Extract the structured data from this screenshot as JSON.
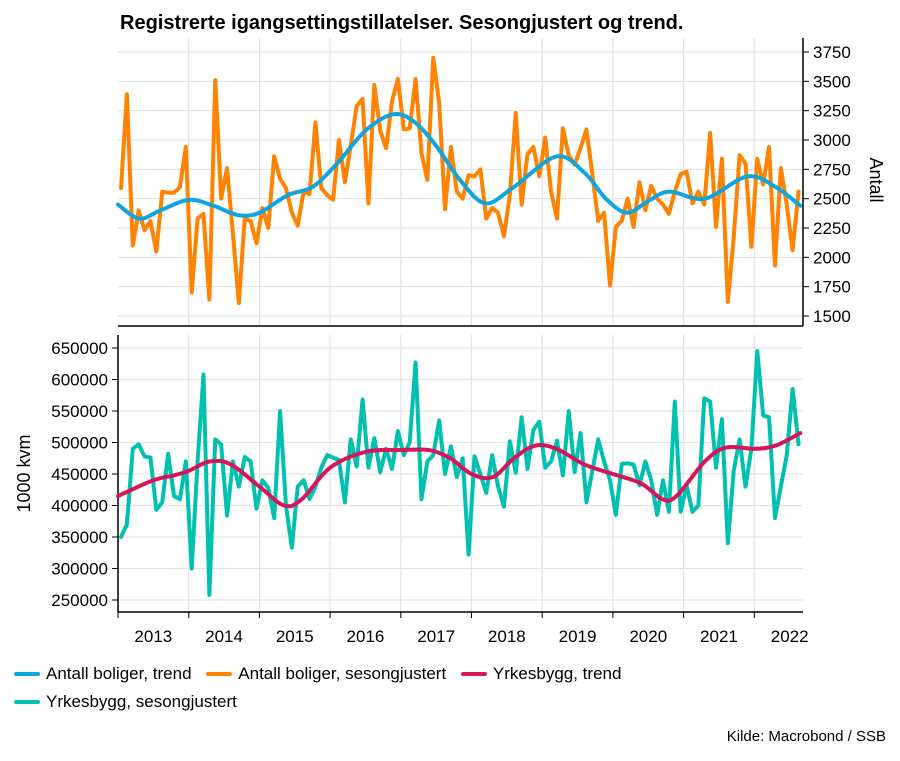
{
  "chart_data": [
    {
      "type": "line",
      "title": "Registrerte igangsettingstillatelser. Sesongjustert og trend.",
      "ylabel": "Antall",
      "yaxis": "right",
      "ylim": [
        1500,
        3750
      ],
      "yticks": [
        1500,
        1750,
        2000,
        2250,
        2500,
        2750,
        3000,
        3250,
        3500,
        3750
      ],
      "grid": true,
      "series": [
        {
          "name": "Antall boliger, sesongjustert",
          "color": "#ff8200",
          "start": 2013.0,
          "step": 0.08333,
          "values": [
            2590,
            3390,
            2100,
            2400,
            2230,
            2310,
            2050,
            2560,
            2550,
            2550,
            2600,
            2940,
            1700,
            2330,
            2370,
            1640,
            3510,
            2500,
            2760,
            2200,
            1610,
            2330,
            2310,
            2120,
            2420,
            2250,
            2860,
            2670,
            2590,
            2380,
            2270,
            2560,
            2540,
            3150,
            2590,
            2530,
            2490,
            3000,
            2640,
            2950,
            3290,
            3350,
            2460,
            3470,
            3080,
            2930,
            3330,
            3520,
            3090,
            3100,
            3520,
            2890,
            2660,
            3700,
            3320,
            2410,
            2940,
            2560,
            2500,
            2700,
            2690,
            2750,
            2330,
            2420,
            2380,
            2180,
            2530,
            3230,
            2450,
            2880,
            2940,
            2690,
            3020,
            2560,
            2330,
            3100,
            2870,
            2790,
            2930,
            3090,
            2710,
            2310,
            2380,
            1760,
            2260,
            2310,
            2500,
            2260,
            2640,
            2400,
            2610,
            2500,
            2450,
            2370,
            2560,
            2710,
            2730,
            2460,
            2560,
            2450,
            3060,
            2260,
            2840,
            1620,
            2170,
            2870,
            2800,
            2090,
            2840,
            2620,
            2940,
            1930,
            2760,
            2450,
            2060,
            2560
          ]
        },
        {
          "name": "Antall boliger, trend",
          "color": "#0ea5e0",
          "x": [
            2013.0,
            2013.3,
            2013.6,
            2014.0,
            2014.35,
            2014.7,
            2015.0,
            2015.4,
            2015.75,
            2016.1,
            2016.5,
            2016.9,
            2017.2,
            2017.5,
            2017.85,
            2018.2,
            2018.6,
            2019.2,
            2019.6,
            2019.9,
            2020.2,
            2020.5,
            2020.8,
            2021.3,
            2021.9,
            2022.3,
            2022.65
          ],
          "values": [
            2450,
            2330,
            2400,
            2490,
            2440,
            2360,
            2380,
            2530,
            2600,
            2800,
            3080,
            3220,
            3150,
            2950,
            2650,
            2460,
            2600,
            2860,
            2720,
            2500,
            2380,
            2480,
            2560,
            2500,
            2690,
            2600,
            2440
          ]
        }
      ]
    },
    {
      "type": "line",
      "ylabel": "1000 kvm",
      "yaxis": "left",
      "ylim": [
        250000,
        650000
      ],
      "yticks": [
        250000,
        300000,
        350000,
        400000,
        450000,
        500000,
        550000,
        600000,
        650000
      ],
      "xticks": [
        "2013",
        "2014",
        "2015",
        "2016",
        "2017",
        "2018",
        "2019",
        "2020",
        "2021",
        "2022"
      ],
      "grid": true,
      "series": [
        {
          "name": "Yrkesbygg, sesongjustert",
          "color": "#00c1b0",
          "start": 2013.0,
          "step": 0.08333,
          "values": [
            350000,
            370000,
            490000,
            497000,
            478000,
            476000,
            393000,
            405000,
            482000,
            415000,
            410000,
            470000,
            300000,
            470000,
            608000,
            258000,
            505000,
            497000,
            384000,
            470000,
            430000,
            477000,
            470000,
            395000,
            440000,
            428000,
            380000,
            550000,
            400000,
            333000,
            430000,
            440000,
            410000,
            430000,
            460000,
            480000,
            476000,
            472000,
            405000,
            505000,
            462000,
            568000,
            460000,
            507000,
            453000,
            490000,
            458000,
            518000,
            480000,
            500000,
            627000,
            410000,
            470000,
            480000,
            535000,
            450000,
            494000,
            445000,
            475000,
            322000,
            478000,
            450000,
            420000,
            480000,
            430000,
            398000,
            502000,
            452000,
            540000,
            458000,
            520000,
            533000,
            460000,
            470000,
            503000,
            448000,
            550000,
            453000,
            515000,
            405000,
            455000,
            505000,
            470000,
            440000,
            385000,
            466000,
            467000,
            465000,
            432000,
            470000,
            440000,
            385000,
            440000,
            390000,
            565000,
            390000,
            432000,
            390000,
            400000,
            570000,
            565000,
            460000,
            537000,
            340000,
            455000,
            505000,
            430000,
            490000,
            645000,
            543000,
            540000,
            380000,
            430000,
            480000,
            585000,
            497000
          ]
        },
        {
          "name": "Yrkesbygg, trend",
          "color": "#d6165a",
          "x": [
            2013.0,
            2013.5,
            2013.8,
            2014.0,
            2014.3,
            2014.6,
            2015.0,
            2015.35,
            2015.6,
            2016.0,
            2016.5,
            2017.0,
            2017.4,
            2017.7,
            2018.0,
            2018.3,
            2018.6,
            2018.9,
            2019.2,
            2019.6,
            2020.0,
            2020.4,
            2020.7,
            2020.9,
            2021.3,
            2021.6,
            2022.0,
            2022.3,
            2022.65
          ],
          "values": [
            415000,
            440000,
            448000,
            455000,
            470000,
            465000,
            430000,
            400000,
            410000,
            460000,
            485000,
            488000,
            488000,
            475000,
            450000,
            445000,
            475000,
            495000,
            490000,
            465000,
            450000,
            435000,
            410000,
            415000,
            470000,
            492000,
            490000,
            495000,
            515000
          ]
        }
      ]
    }
  ],
  "legend": [
    "Antall boliger, trend",
    "Antall boliger, sesongjustert",
    "Yrkesbygg, trend",
    "Yrkesbygg, sesongjustert"
  ],
  "legend_colors": [
    "#0ea5e0",
    "#ff8200",
    "#d6165a",
    "#00c1b0"
  ],
  "source": "Kilde: Macrobond / SSB"
}
